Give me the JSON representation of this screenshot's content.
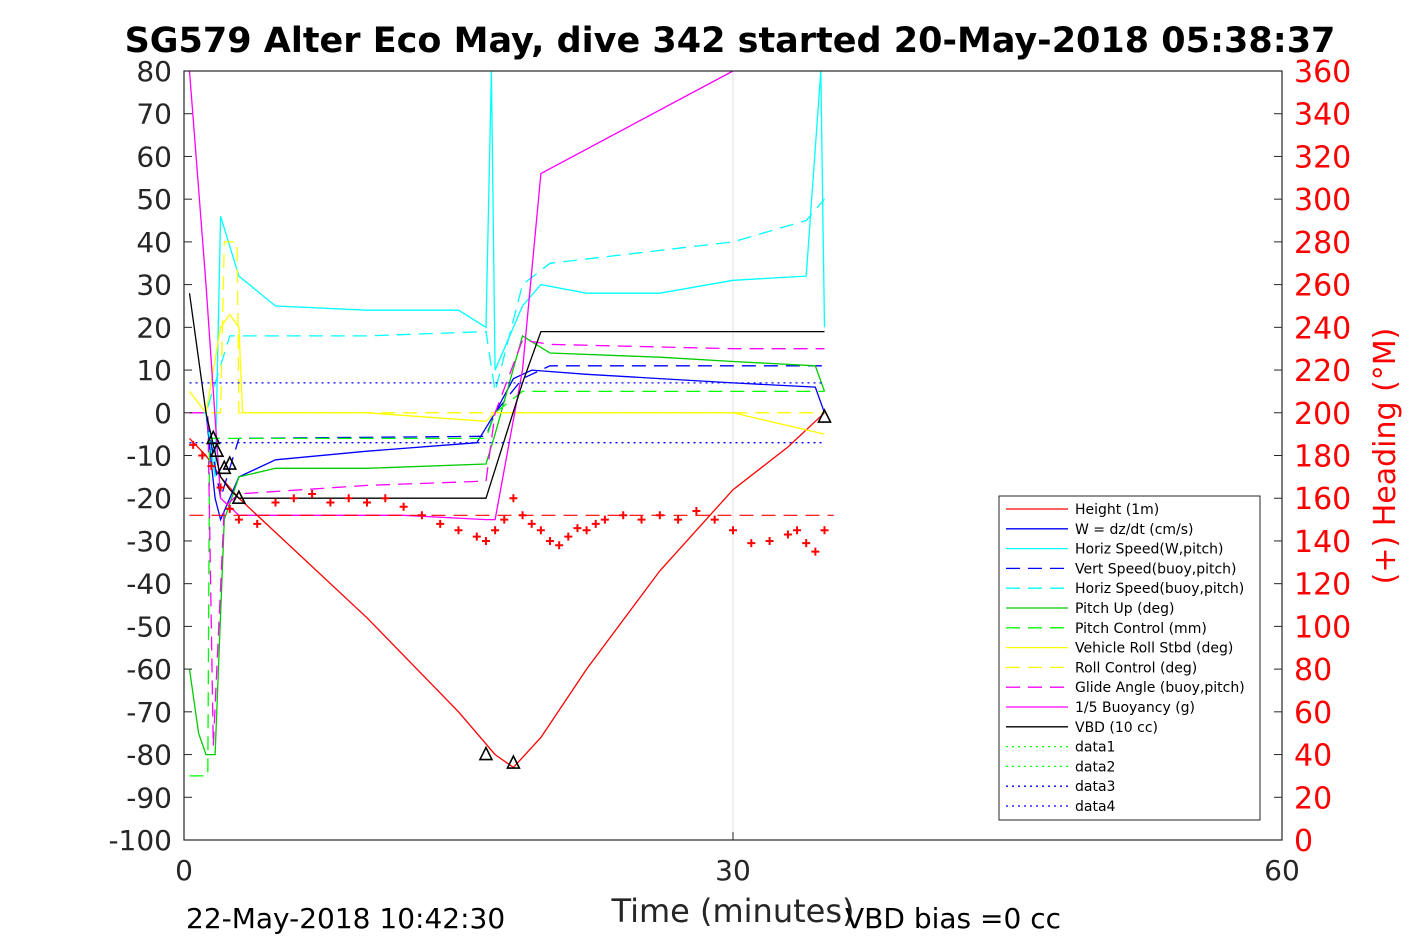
{
  "title": "SG579 Alter Eco May, dive 342 started 20-May-2018 05:38:37",
  "footer": {
    "timestamp": "22-May-2018 10:42:30",
    "vbd_bias": "VBD bias =0 cc"
  },
  "colors": {
    "red": "#ff0000",
    "blue": "#0000ff",
    "cyan": "#00ffff",
    "green": "#00ff00",
    "green_dark": "#00cc00",
    "yellow": "#ffff00",
    "magenta": "#ff00ff",
    "black": "#000000",
    "teal": "#00b4b4"
  },
  "chart_data": {
    "type": "line",
    "xlabel": "Time (minutes)",
    "ylabel": "",
    "y2label": "(+) Heading (°M)",
    "xlim": [
      0,
      60
    ],
    "ylim": [
      -100,
      80
    ],
    "y2lim": [
      0,
      360
    ],
    "xticks": [
      "0",
      "30",
      "60"
    ],
    "yticks": [
      "80",
      "70",
      "60",
      "50",
      "40",
      "30",
      "20",
      "10",
      "0",
      "-10",
      "-20",
      "-30",
      "-40",
      "-50",
      "-60",
      "-70",
      "-80",
      "-90",
      "-100"
    ],
    "y2ticks": [
      "360",
      "340",
      "320",
      "300",
      "280",
      "260",
      "240",
      "220",
      "200",
      "180",
      "160",
      "140",
      "120",
      "100",
      "80",
      "60",
      "40",
      "20",
      "0"
    ],
    "grid": true,
    "legend_position": "right",
    "series": [
      {
        "name": "Height (1m)",
        "color": "#ff0000",
        "style": "solid",
        "x": [
          0.3,
          1.2,
          2.0,
          3.0,
          5.0,
          10.0,
          15.0,
          17.0,
          18.0,
          19.5,
          22.0,
          26.0,
          30.0,
          33.0,
          35.0
        ],
        "y": [
          -6,
          -10,
          -15,
          -20,
          -28,
          -48,
          -70,
          -80,
          -83,
          -76,
          -60,
          -37,
          -18,
          -8,
          0
        ]
      },
      {
        "name": "W = dz/dt (cm/s)",
        "color": "#0000ff",
        "style": "solid",
        "x": [
          0.3,
          1.2,
          1.7,
          2.0,
          3.0,
          5.0,
          10.0,
          16.0,
          17.0,
          18.0,
          19.0,
          22.0,
          26.0,
          30.0,
          34.5,
          35.0
        ],
        "y": [
          0,
          0,
          -20,
          -25,
          -15,
          -11,
          -9,
          -7,
          0,
          8,
          10,
          9,
          8,
          7,
          6,
          0
        ]
      },
      {
        "name": "Horiz Speed(W,pitch)",
        "color": "#00ffff",
        "style": "solid",
        "x": [
          0.3,
          1.2,
          1.7,
          2.0,
          3.0,
          5.0,
          10.0,
          15.0,
          16.5,
          16.8,
          17.0,
          18.5,
          19.5,
          22.0,
          26.0,
          30.0,
          34.0,
          34.8,
          35.0
        ],
        "y": [
          0,
          0,
          -15,
          46,
          32,
          25,
          24,
          24,
          20,
          80,
          10,
          25,
          30,
          28,
          28,
          31,
          32,
          80,
          20
        ]
      },
      {
        "name": "Vert Speed(buoy,pitch)",
        "color": "#0000ff",
        "style": "dashed",
        "x": [
          0.3,
          1.2,
          2.0,
          3.0,
          16.5,
          17.0,
          18.5,
          20.0,
          35.0
        ],
        "y": [
          0,
          0,
          -20,
          -6,
          -5.5,
          0,
          8,
          11,
          11
        ]
      },
      {
        "name": "Horiz Speed(buoy,pitch)",
        "color": "#00ffff",
        "style": "dashed",
        "x": [
          0.3,
          1.2,
          2.5,
          3.5,
          10.0,
          16.5,
          17.0,
          18.5,
          20.0,
          26.0,
          30.0,
          34.0,
          35.0
        ],
        "y": [
          0,
          0,
          18,
          18,
          18,
          19,
          5,
          30,
          35,
          38,
          40,
          45,
          50
        ]
      },
      {
        "name": "Pitch Up (deg)",
        "color": "#00cc00",
        "style": "solid",
        "x": [
          0.3,
          0.8,
          1.2,
          1.7,
          2.2,
          3.0,
          5.0,
          10.0,
          16.5,
          17.0,
          18.5,
          20.0,
          26.0,
          30.0,
          34.5,
          35.0
        ],
        "y": [
          -60,
          -75,
          -80,
          -80,
          -25,
          -15,
          -13,
          -13,
          -12,
          -5,
          18,
          14,
          13,
          12,
          11,
          5
        ]
      },
      {
        "name": "Pitch Control (mm)",
        "color": "#00ff00",
        "style": "dashed",
        "x": [
          0.3,
          1.3,
          1.4,
          2.2,
          3.0,
          16.5,
          17.0,
          18.5,
          35.0
        ],
        "y": [
          -85,
          -85,
          -6,
          -6,
          -6,
          -6,
          0,
          5,
          5
        ]
      },
      {
        "name": "Vehicle Roll Stbd (deg)",
        "color": "#ffff00",
        "style": "solid",
        "x": [
          0.3,
          1.2,
          2.0,
          2.5,
          3.0,
          3.2,
          10.0,
          16.5,
          17.0,
          30.0,
          35.0
        ],
        "y": [
          5,
          0,
          20,
          23,
          20,
          0,
          0,
          -2,
          0,
          0,
          -5
        ]
      },
      {
        "name": "Roll Control (deg)",
        "color": "#ffff00",
        "style": "dashed",
        "x": [
          0.3,
          2.0,
          2.2,
          2.9,
          3.0,
          35.0
        ],
        "y": [
          0,
          0,
          40,
          40,
          0,
          0
        ]
      },
      {
        "name": "Glide Angle (buoy,pitch)",
        "color": "#ff00ff",
        "style": "dashed",
        "x": [
          0.3,
          1.3,
          1.6,
          2.2,
          3.0,
          10.0,
          16.5,
          17.0,
          18.5,
          20.0,
          30.0,
          35.0
        ],
        "y": [
          0,
          0,
          -78,
          -22,
          -19,
          -17,
          -16,
          0,
          17,
          16,
          15,
          15
        ]
      },
      {
        "name": "1/5 Buoyancy (g)",
        "color": "#ff00ff",
        "style": "solid",
        "x": [
          0.3,
          1.2,
          2.0,
          3.0,
          12.0,
          16.5,
          17.0,
          18.5,
          19.5,
          30.0
        ],
        "y": [
          80,
          30,
          -20,
          -24,
          -24,
          -25,
          -25,
          10,
          56,
          80
        ]
      },
      {
        "name": "VBD (10 cc)",
        "color": "#000000",
        "style": "solid",
        "x": [
          0.3,
          1.2,
          2.0,
          2.5,
          3.0,
          16.5,
          18.5,
          19.5,
          35.0
        ],
        "y": [
          28,
          0,
          -15,
          -18,
          -20,
          -20,
          7,
          19,
          19
        ]
      },
      {
        "name": "data1",
        "color": "#00ff00",
        "style": "dotted",
        "x": [],
        "y": []
      },
      {
        "name": "data2",
        "color": "#00ff00",
        "style": "dotted",
        "x": [],
        "y": []
      },
      {
        "name": "data3",
        "color": "#0000ff",
        "style": "dotted",
        "x": [
          0.3,
          35.0
        ],
        "y": [
          7,
          7
        ]
      },
      {
        "name": "data4",
        "color": "#0000ff",
        "style": "dotted",
        "x": [
          0.3,
          35.0
        ],
        "y": [
          -7,
          -7
        ]
      }
    ],
    "heading": {
      "color": "#ff0000",
      "marker": "+",
      "axis": "right",
      "x": [
        0.5,
        1.0,
        1.5,
        2.0,
        2.5,
        3.0,
        4.0,
        5.0,
        6.0,
        7.0,
        8.0,
        9.0,
        10.0,
        11.0,
        12.0,
        13.0,
        14.0,
        15.0,
        16.0,
        16.5,
        17.0,
        17.5,
        18.0,
        18.5,
        19.0,
        19.5,
        20.0,
        20.5,
        21.0,
        21.5,
        22.0,
        22.5,
        23.0,
        24.0,
        25.0,
        26.0,
        27.0,
        28.0,
        29.0,
        30.0,
        31.0,
        32.0,
        33.0,
        33.5,
        34.0,
        34.5,
        35.0
      ],
      "y": [
        185,
        180,
        175,
        165,
        155,
        150,
        148,
        158,
        160,
        162,
        158,
        160,
        158,
        160,
        156,
        152,
        148,
        145,
        142,
        140,
        145,
        150,
        160,
        152,
        148,
        145,
        140,
        138,
        142,
        146,
        145,
        148,
        150,
        152,
        150,
        152,
        150,
        154,
        150,
        145,
        139,
        140,
        143,
        145,
        139,
        135,
        145
      ],
      "reference_heading": 152
    },
    "markers": {
      "triangles": [
        {
          "x": 1.6,
          "y": -6
        },
        {
          "x": 1.8,
          "y": -9
        },
        {
          "x": 2.2,
          "y": -13
        },
        {
          "x": 2.5,
          "y": -12
        },
        {
          "x": 3.0,
          "y": -20
        },
        {
          "x": 16.5,
          "y": -80
        },
        {
          "x": 18.0,
          "y": -82
        },
        {
          "x": 35.0,
          "y": -1
        }
      ]
    }
  }
}
